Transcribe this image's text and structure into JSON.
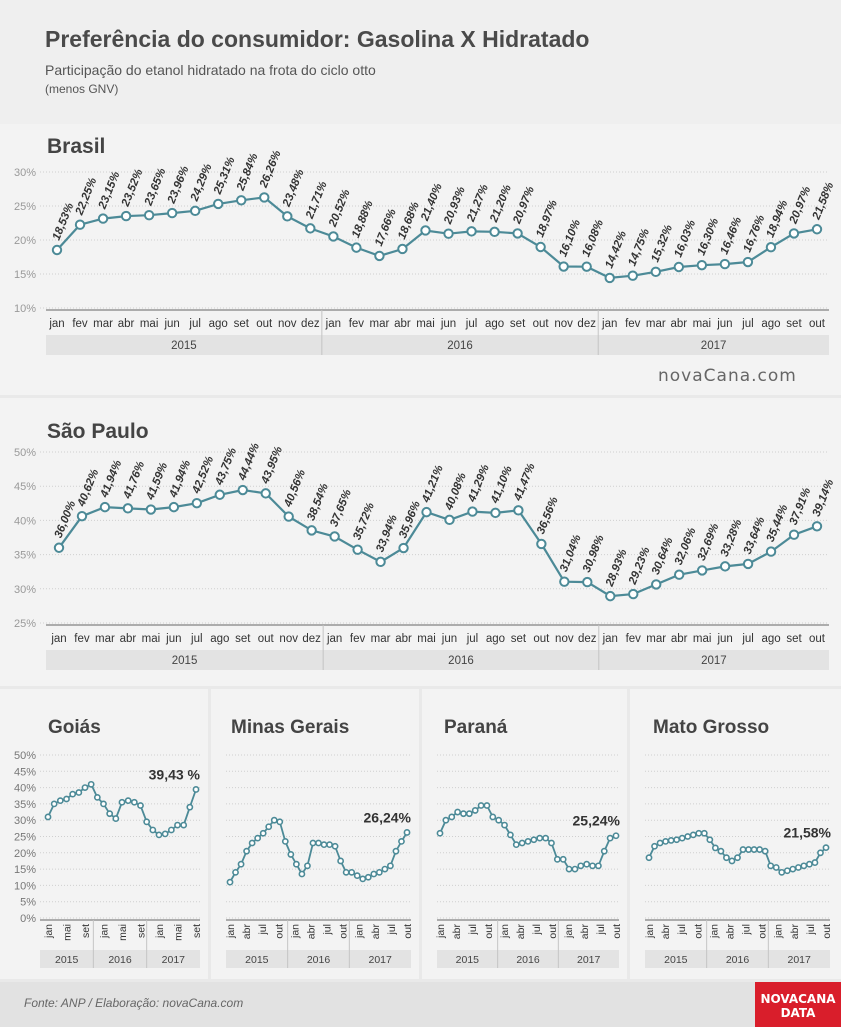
{
  "header": {
    "title": "Preferência do consumidor: Gasolina X Hidratado",
    "subtitle": "Participação do etanol hidratado na frota do ciclo otto",
    "subtitle2": "(menos GNV)"
  },
  "brand": "novaCana.com",
  "footer": {
    "source": "Fonte: ANP / Elaboração: novaCana.com",
    "logo_line1": "NOVACANA",
    "logo_line2": "DATA"
  },
  "colors": {
    "line": "#4c8a97",
    "marker_fill": "#ffffff",
    "text": "#444444"
  },
  "chart_data": [
    {
      "id": "brasil",
      "type": "line",
      "title": "Brasil",
      "categories": [
        "jan",
        "fev",
        "mar",
        "abr",
        "mai",
        "jun",
        "jul",
        "ago",
        "set",
        "out",
        "nov",
        "dez",
        "jan",
        "fev",
        "mar",
        "abr",
        "mai",
        "jun",
        "jul",
        "ago",
        "set",
        "out",
        "nov",
        "dez",
        "jan",
        "fev",
        "mar",
        "abr",
        "mai",
        "jun",
        "jul",
        "ago",
        "set",
        "out"
      ],
      "years": [
        "2015",
        "2016",
        "2017"
      ],
      "values": [
        18.53,
        22.25,
        23.15,
        23.52,
        23.65,
        23.96,
        24.29,
        25.31,
        25.84,
        26.26,
        23.48,
        21.71,
        20.52,
        18.88,
        17.66,
        18.68,
        21.4,
        20.93,
        21.27,
        21.2,
        20.97,
        18.97,
        16.1,
        16.08,
        14.42,
        14.75,
        15.32,
        16.03,
        16.3,
        16.46,
        16.76,
        18.94,
        20.97,
        21.58
      ],
      "labels": [
        "18,53%",
        "22,25%",
        "23,15%",
        "23,52%",
        "23,65%",
        "23,96%",
        "24,29%",
        "25,31%",
        "25,84%",
        "26,26%",
        "23,48%",
        "21,71%",
        "20,52%",
        "18,88%",
        "17,66%",
        "18,68%",
        "21,40%",
        "20,93%",
        "21,27%",
        "21,20%",
        "20,97%",
        "18,97%",
        "16,10%",
        "16,08%",
        "14,42%",
        "14,75%",
        "15,32%",
        "16,03%",
        "16,30%",
        "16,46%",
        "16,76%",
        "18,94%",
        "20,97%",
        "21,58%"
      ],
      "yticks": [
        "30%",
        "25%",
        "20%",
        "15%",
        "10%"
      ],
      "ylim": [
        10,
        30
      ]
    },
    {
      "id": "saopaulo",
      "type": "line",
      "title": "São Paulo",
      "categories": [
        "jan",
        "fev",
        "mar",
        "abr",
        "mai",
        "jun",
        "jul",
        "ago",
        "set",
        "out",
        "nov",
        "dez",
        "jan",
        "fev",
        "mar",
        "abr",
        "mai",
        "jun",
        "jul",
        "ago",
        "set",
        "out",
        "nov",
        "dez",
        "jan",
        "fev",
        "mar",
        "abr",
        "mai",
        "jun",
        "jul",
        "ago",
        "set",
        "out"
      ],
      "years": [
        "2015",
        "2016",
        "2017"
      ],
      "values": [
        36.0,
        40.62,
        41.94,
        41.76,
        41.59,
        41.94,
        42.52,
        43.75,
        44.44,
        43.95,
        40.56,
        38.54,
        37.65,
        35.72,
        33.94,
        35.96,
        41.21,
        40.08,
        41.29,
        41.1,
        41.47,
        36.56,
        31.04,
        30.98,
        28.93,
        29.23,
        30.64,
        32.06,
        32.69,
        33.28,
        33.64,
        35.44,
        37.91,
        39.14
      ],
      "labels": [
        "36,00%",
        "40,62%",
        "41,94%",
        "41,76%",
        "41,59%",
        "41,94%",
        "42,52%",
        "43,75%",
        "44,44%",
        "43,95%",
        "40,56%",
        "38,54%",
        "37,65%",
        "35,72%",
        "33,94%",
        "35,96%",
        "41,21%",
        "40,08%",
        "41,29%",
        "41,10%",
        "41,47%",
        "36,56%",
        "31,04%",
        "30,98%",
        "28,93%",
        "29,23%",
        "30,64%",
        "32,06%",
        "32,69%",
        "33,28%",
        "33,64%",
        "35,44%",
        "37,91%",
        "39,14%"
      ],
      "yticks": [
        "50%",
        "45%",
        "40%",
        "35%",
        "30%",
        "25%"
      ],
      "ylim": [
        25,
        50
      ]
    },
    {
      "id": "goias",
      "type": "line",
      "title": "Goiás",
      "last_label": "39,43 %",
      "ylim": [
        0,
        50
      ],
      "yticks": [
        "50%",
        "45%",
        "40%",
        "35%",
        "30%",
        "25%",
        "20%",
        "15%",
        "10%",
        "5%",
        "0%"
      ],
      "xticks": [
        "jan",
        "mai",
        "set",
        "jan",
        "mai",
        "set",
        "jan",
        "mai",
        "set"
      ],
      "years": [
        "2015",
        "2016",
        "2017"
      ],
      "values": [
        31.0,
        35.0,
        36.0,
        36.5,
        38.0,
        38.5,
        40.0,
        41.0,
        37.0,
        35.0,
        32.0,
        30.5,
        35.5,
        36.0,
        35.5,
        34.5,
        29.5,
        27.0,
        25.5,
        25.8,
        27.0,
        28.5,
        28.5,
        34.0,
        39.43
      ]
    },
    {
      "id": "minasgerais",
      "type": "line",
      "title": "Minas Gerais",
      "last_label": "26,24%",
      "ylim": [
        0,
        50
      ],
      "xticks": [
        "jan",
        "abr",
        "jul",
        "out",
        "jan",
        "abr",
        "jul",
        "out",
        "jan",
        "abr",
        "jul",
        "out"
      ],
      "years": [
        "2015",
        "2016",
        "2017"
      ],
      "values": [
        11.0,
        14.0,
        16.5,
        20.5,
        23.0,
        24.5,
        26.0,
        28.0,
        30.0,
        29.5,
        23.5,
        19.5,
        16.5,
        13.5,
        16.0,
        23.0,
        23.0,
        22.5,
        22.5,
        22.0,
        17.5,
        14.0,
        14.0,
        13.0,
        12.0,
        12.5,
        13.5,
        14.0,
        15.0,
        16.0,
        20.5,
        23.5,
        26.24
      ]
    },
    {
      "id": "parana",
      "type": "line",
      "title": "Paraná",
      "last_label": "25,24%",
      "ylim": [
        0,
        50
      ],
      "xticks": [
        "jan",
        "abr",
        "jul",
        "out",
        "jan",
        "abr",
        "jul",
        "out",
        "jan",
        "abr",
        "jul",
        "out"
      ],
      "years": [
        "2015",
        "2016",
        "2017"
      ],
      "values": [
        26.0,
        30.0,
        31.0,
        32.5,
        32.0,
        32.0,
        33.0,
        34.5,
        34.5,
        31.0,
        30.0,
        28.5,
        25.5,
        22.5,
        23.0,
        23.5,
        24.0,
        24.5,
        24.5,
        23.0,
        18.0,
        18.0,
        15.0,
        15.0,
        16.0,
        16.5,
        16.0,
        16.0,
        20.5,
        24.5,
        25.24
      ]
    },
    {
      "id": "matogrosso",
      "type": "line",
      "title": "Mato Grosso",
      "last_label": "21,58%",
      "ylim": [
        0,
        50
      ],
      "xticks": [
        "jan",
        "abr",
        "jul",
        "out",
        "jan",
        "abr",
        "jul",
        "out",
        "jan",
        "abr",
        "jul",
        "out"
      ],
      "years": [
        "2015",
        "2016",
        "2017"
      ],
      "values": [
        18.5,
        22.0,
        23.0,
        23.5,
        23.8,
        24.0,
        24.5,
        25.0,
        25.5,
        26.0,
        26.0,
        24.0,
        21.5,
        20.5,
        18.5,
        17.5,
        18.5,
        21.0,
        21.0,
        21.0,
        21.0,
        20.5,
        16.0,
        15.5,
        14.0,
        14.5,
        15.0,
        15.5,
        16.0,
        16.5,
        17.0,
        20.0,
        21.58
      ]
    }
  ]
}
